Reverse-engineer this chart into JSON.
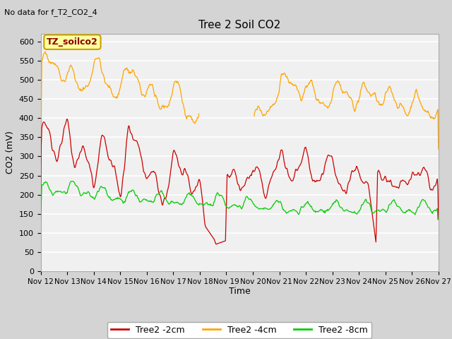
{
  "title": "Tree 2 Soil CO2",
  "subtitle": "No data for f_T2_CO2_4",
  "ylabel": "CO2 (mV)",
  "xlabel": "Time",
  "legend_label": "TZ_soilco2",
  "x_tick_labels": [
    "Nov 12",
    "Nov 13",
    "Nov 14",
    "Nov 15",
    "Nov 16",
    "Nov 17",
    "Nov 18",
    "Nov 19",
    "Nov 20",
    "Nov 21",
    "Nov 22",
    "Nov 23",
    "Nov 24",
    "Nov 25",
    "Nov 26",
    "Nov 27"
  ],
  "ylim": [
    0,
    620
  ],
  "yticks": [
    0,
    50,
    100,
    150,
    200,
    250,
    300,
    350,
    400,
    450,
    500,
    550,
    600
  ],
  "color_2cm": "#CC0000",
  "color_4cm": "#FFA500",
  "color_8cm": "#00CC00",
  "fig_bg_color": "#D4D4D4",
  "plot_bg_color": "#F0F0F0",
  "legend_series": [
    "Tree2 -2cm",
    "Tree2 -4cm",
    "Tree2 -8cm"
  ],
  "legend_label_facecolor": "#FFFFA0",
  "legend_label_edgecolor": "#C8A000"
}
